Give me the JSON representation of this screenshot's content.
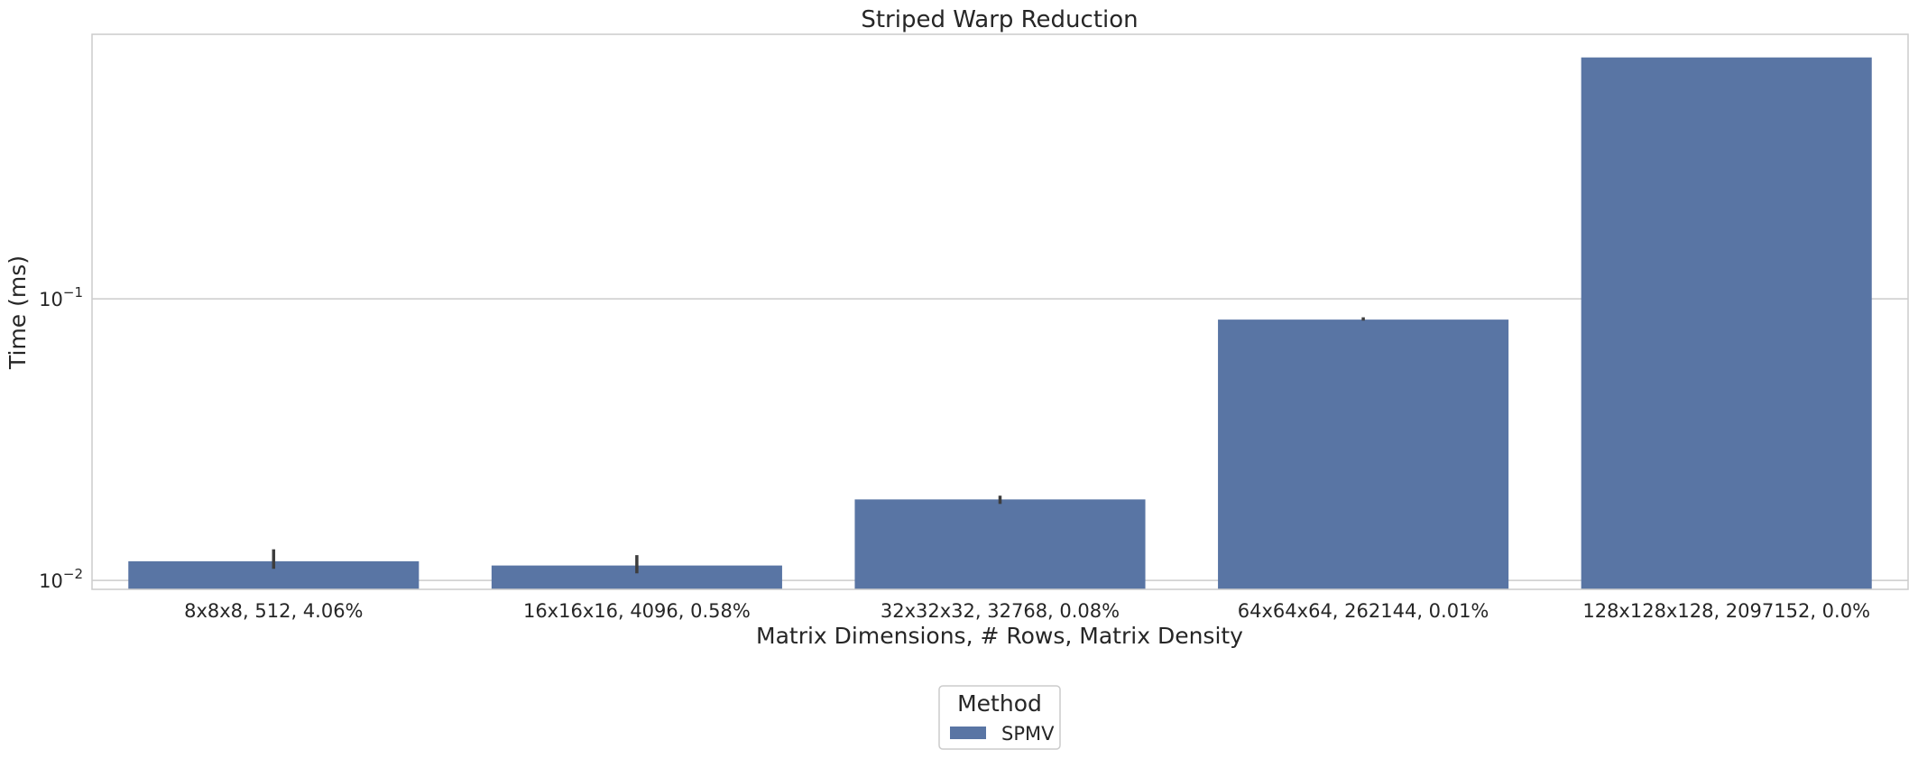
{
  "chart_data": {
    "type": "bar",
    "title": "Striped Warp Reduction",
    "xlabel": "Matrix Dimensions, # Rows, Matrix Density",
    "ylabel": "Time (ms)",
    "yscale": "log",
    "ylim": [
      0.0093,
      0.87
    ],
    "yticks": [
      {
        "value": 0.01,
        "base": "10",
        "exp": "−2"
      },
      {
        "value": 0.1,
        "base": "10",
        "exp": "−1"
      }
    ],
    "categories": [
      "8x8x8, 512, 4.06%",
      "16x16x16, 4096, 0.58%",
      "32x32x32, 32768, 0.08%",
      "64x64x64, 262144, 0.01%",
      "128x128x128, 2097152, 0.0%"
    ],
    "series": [
      {
        "name": "SPMV",
        "color": "#5975a4",
        "values": [
          0.0117,
          0.0113,
          0.0194,
          0.0844,
          0.72
        ],
        "error_low": [
          0.011,
          0.0106,
          0.0187,
          0.0837,
          null
        ],
        "error_high": [
          0.0129,
          0.0123,
          0.02,
          0.086,
          null
        ]
      }
    ],
    "grid": true,
    "legend": {
      "title": "Method",
      "placement": "bottom-center"
    }
  }
}
